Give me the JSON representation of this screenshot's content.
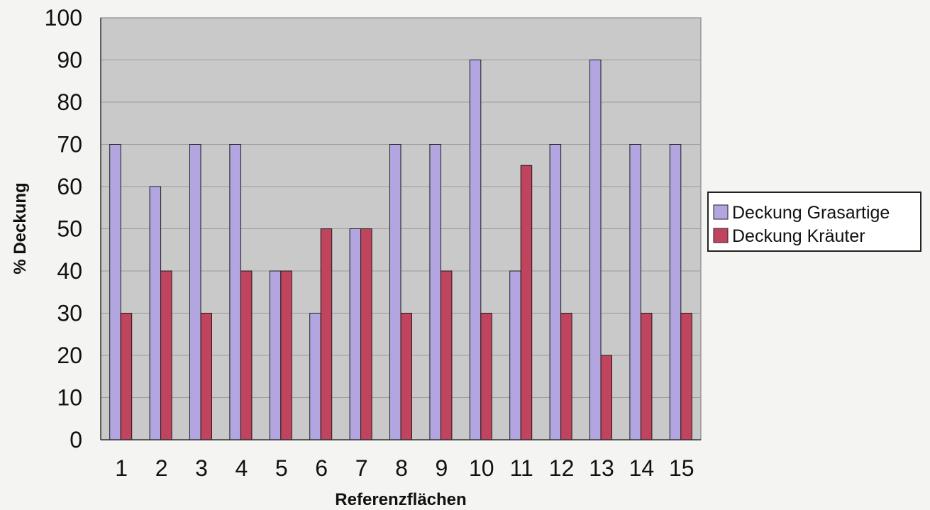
{
  "chart_data": {
    "type": "bar",
    "title": "",
    "xlabel": "Referenzflächen",
    "ylabel": "% Deckung",
    "ylim": [
      0,
      100
    ],
    "yticks": [
      0,
      10,
      20,
      30,
      40,
      50,
      60,
      70,
      80,
      90,
      100
    ],
    "grid": true,
    "legend_position": "right",
    "categories": [
      "1",
      "2",
      "3",
      "4",
      "5",
      "6",
      "7",
      "8",
      "9",
      "10",
      "11",
      "12",
      "13",
      "14",
      "15"
    ],
    "series": [
      {
        "name": "Deckung Grasartige",
        "color": "#b3a6e0",
        "values": [
          70,
          60,
          70,
          70,
          40,
          30,
          50,
          70,
          70,
          90,
          40,
          70,
          90,
          70,
          70
        ]
      },
      {
        "name": "Deckung Kräuter",
        "color": "#c0445e",
        "values": [
          30,
          40,
          30,
          40,
          40,
          50,
          50,
          30,
          40,
          30,
          65,
          30,
          20,
          30,
          30
        ]
      }
    ],
    "plot_background": "#c9c9c9"
  }
}
